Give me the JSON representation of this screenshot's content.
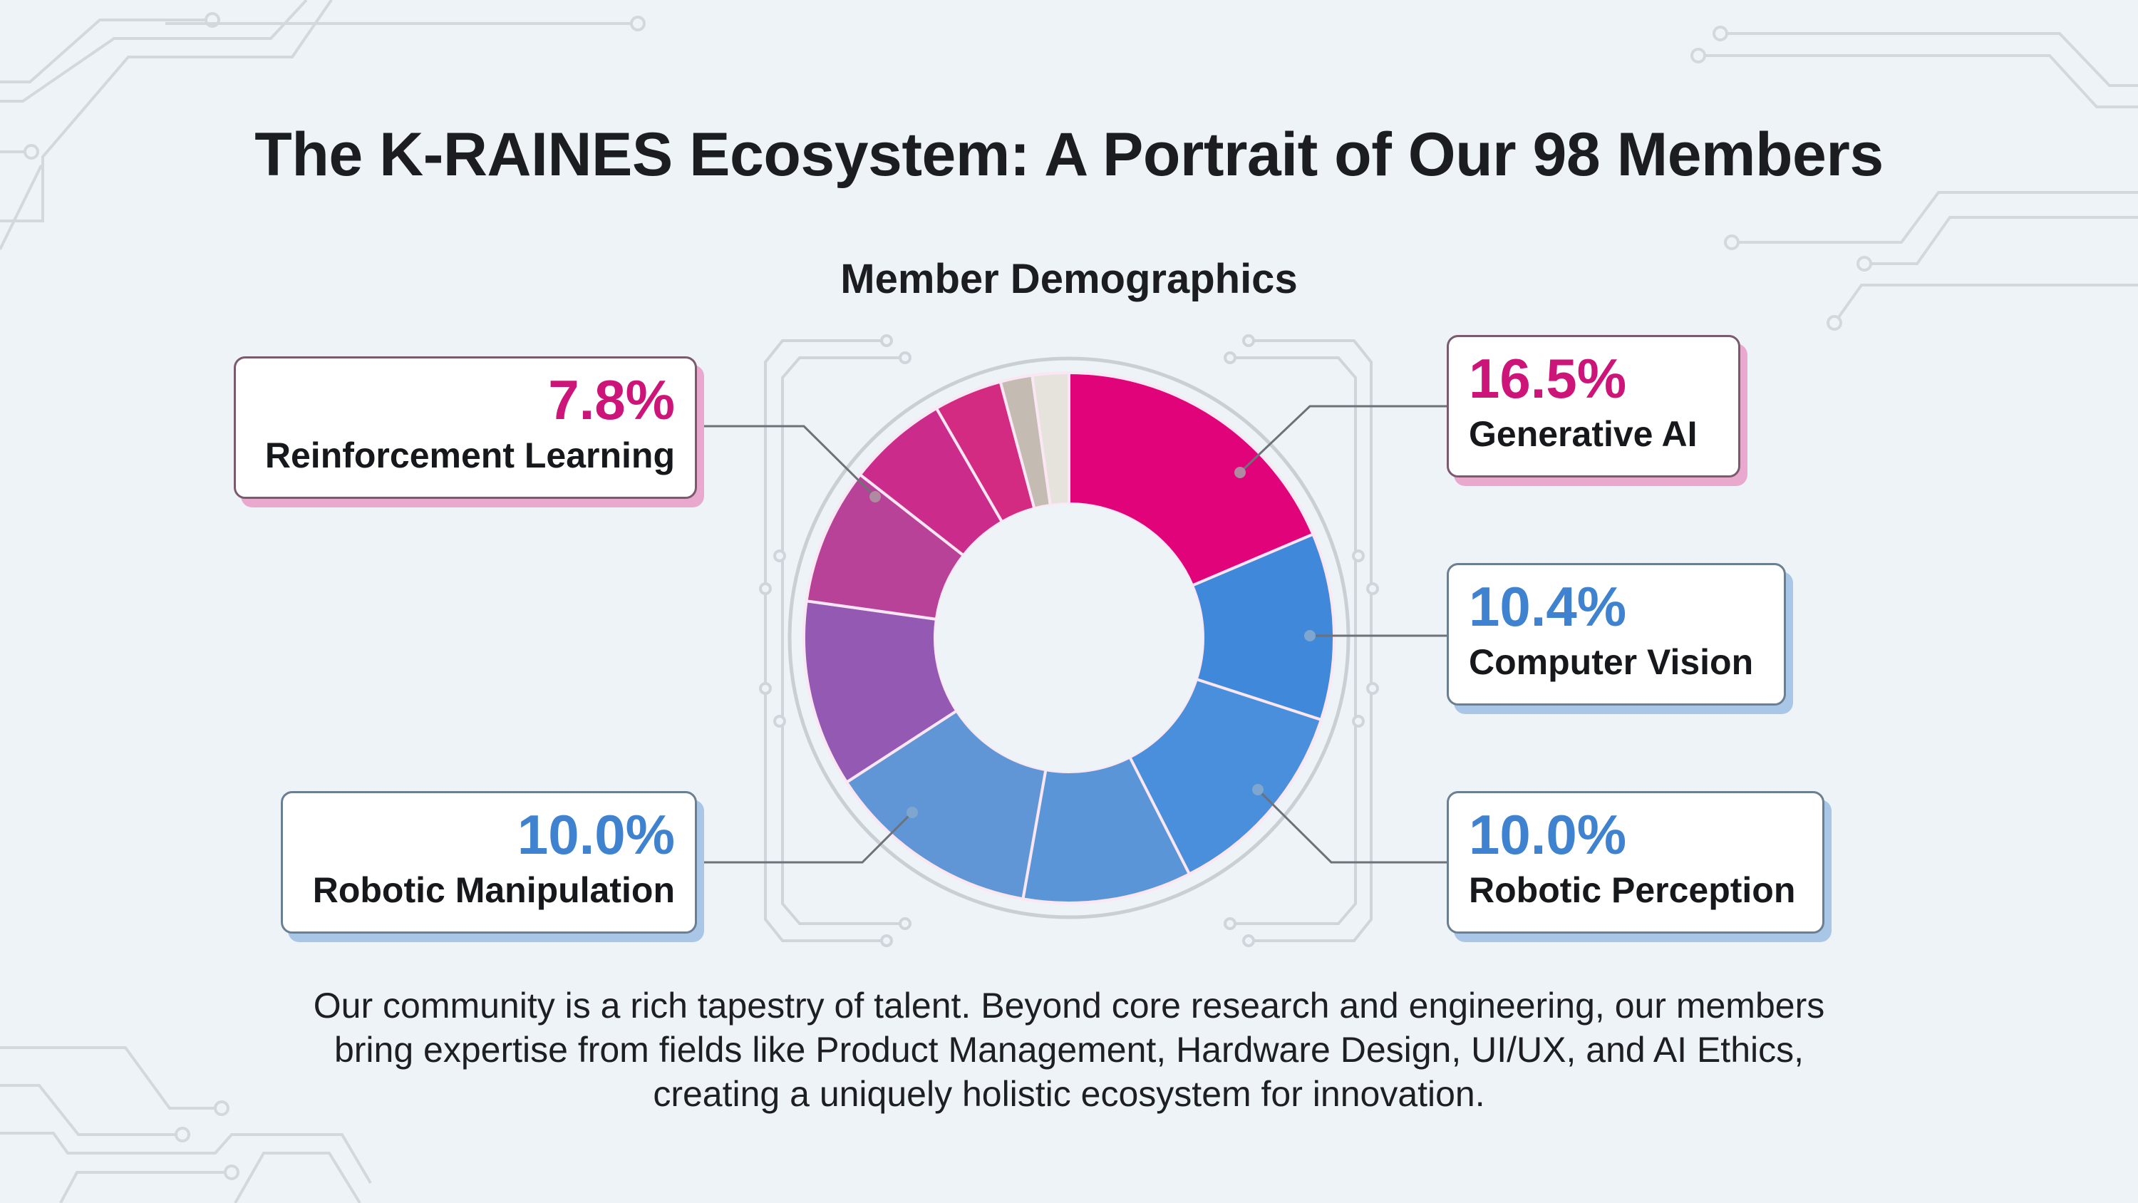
{
  "header": {
    "title": "The K-RAINES Ecosystem: A Portrait of Our 98 Members",
    "subtitle": "Member Demographics"
  },
  "callouts": {
    "generative_ai": {
      "percent": "16.5%",
      "label": "Generative AI",
      "color": "#cc1479"
    },
    "computer_vision": {
      "percent": "10.4%",
      "label": "Computer Vision",
      "color": "#3f82cf"
    },
    "robotic_perception": {
      "percent": "10.0%",
      "label": "Robotic Perception",
      "color": "#3f82cf"
    },
    "robotic_manipulation": {
      "percent": "10.0%",
      "label": "Robotic Manipulation",
      "color": "#3f82cf"
    },
    "reinforcement_learning": {
      "percent": "7.8%",
      "label": "Reinforcement Learning",
      "color": "#cc1479"
    }
  },
  "body": {
    "paragraph": "Our community is a rich tapestry of talent. Beyond core research and engineering, our members bring expertise from fields like Product Management, Hardware Design, UI/UX, and AI Ethics, creating a uniquely holistic ecosystem for innovation."
  },
  "chart_data": {
    "type": "pie",
    "variant": "donut",
    "title": "Member Demographics",
    "total_members": 98,
    "categories": [
      "Generative AI",
      "Computer Vision",
      "Robotic Perception",
      "(unlabeled blue segment)",
      "Robotic Manipulation",
      "(unlabeled purple segment)",
      "(unlabeled magenta-purple segment)",
      "Reinforcement Learning",
      "(unlabeled magenta segment)",
      "(unlabeled taupe segment)",
      "(unlabeled light gray segment)"
    ],
    "values": [
      16.5,
      10.4,
      10.0,
      null,
      10.0,
      null,
      null,
      7.8,
      null,
      null,
      null
    ],
    "labeled_values": {
      "Generative AI": 16.5,
      "Computer Vision": 10.4,
      "Robotic Perception": 10.0,
      "Robotic Manipulation": 10.0,
      "Reinforcement Learning": 7.8
    },
    "segments_visual_degrees": [
      {
        "start": 0,
        "end": 67,
        "color": "#e0037a"
      },
      {
        "start": 67,
        "end": 108,
        "color": "#3f88da"
      },
      {
        "start": 108,
        "end": 153,
        "color": "#4a8fdb"
      },
      {
        "start": 153,
        "end": 190,
        "color": "#5a95d8"
      },
      {
        "start": 190,
        "end": 237,
        "color": "#6096d6"
      },
      {
        "start": 237,
        "end": 278,
        "color": "#9459b2"
      },
      {
        "start": 278,
        "end": 308,
        "color": "#b94299"
      },
      {
        "start": 308,
        "end": 330,
        "color": "#cb2c8c"
      },
      {
        "start": 330,
        "end": 345,
        "color": "#d32a82"
      },
      {
        "start": 345,
        "end": 352,
        "color": "#c4bcb3"
      },
      {
        "start": 352,
        "end": 360,
        "color": "#e6e2dc"
      }
    ],
    "legend": "callout boxes",
    "colors": {
      "pink_accent": "#cc1479",
      "blue_accent": "#3f82cf"
    }
  }
}
